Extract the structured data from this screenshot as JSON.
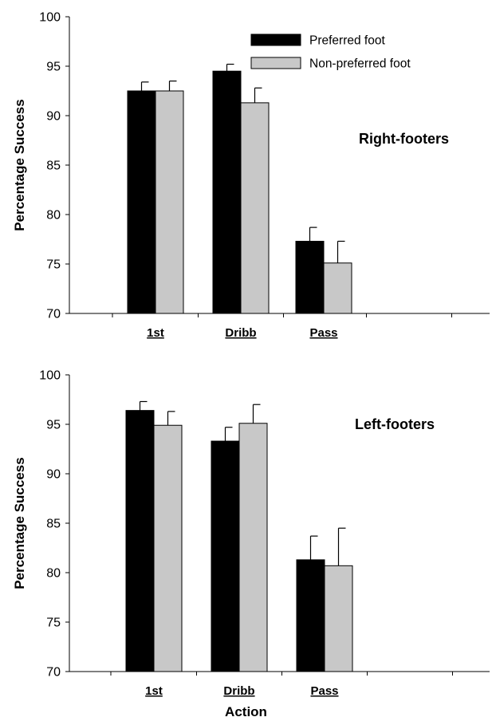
{
  "chart_data": [
    {
      "type": "bar",
      "title": "",
      "annotation": "Right-footers",
      "xlabel": "",
      "ylabel": "Percentage Success",
      "ylim": [
        70,
        100
      ],
      "yticks": [
        70,
        75,
        80,
        85,
        90,
        95,
        100
      ],
      "categories": [
        "1st",
        "Dribb",
        "Pass"
      ],
      "grid": false,
      "legend": "top-right",
      "series": [
        {
          "name": "Preferred foot",
          "color": "#000000",
          "values": [
            92.5,
            94.5,
            77.3
          ],
          "errors": [
            0.9,
            0.7,
            1.4
          ]
        },
        {
          "name": "Non-preferred foot",
          "color": "#c8c8c8",
          "values": [
            92.5,
            91.3,
            75.1
          ],
          "errors": [
            1.0,
            1.5,
            2.2
          ]
        }
      ]
    },
    {
      "type": "bar",
      "title": "",
      "annotation": "Left-footers",
      "xlabel": "Action",
      "ylabel": "Percentage Success",
      "ylim": [
        70,
        100
      ],
      "yticks": [
        70,
        75,
        80,
        85,
        90,
        95,
        100
      ],
      "categories": [
        "1st",
        "Dribb",
        "Pass"
      ],
      "grid": false,
      "legend": "none",
      "series": [
        {
          "name": "Preferred foot",
          "color": "#000000",
          "values": [
            96.4,
            93.3,
            81.3
          ],
          "errors": [
            0.9,
            1.4,
            2.4
          ]
        },
        {
          "name": "Non-preferred foot",
          "color": "#c8c8c8",
          "values": [
            94.9,
            95.1,
            80.7
          ],
          "errors": [
            1.4,
            1.9,
            3.8
          ]
        }
      ]
    }
  ]
}
